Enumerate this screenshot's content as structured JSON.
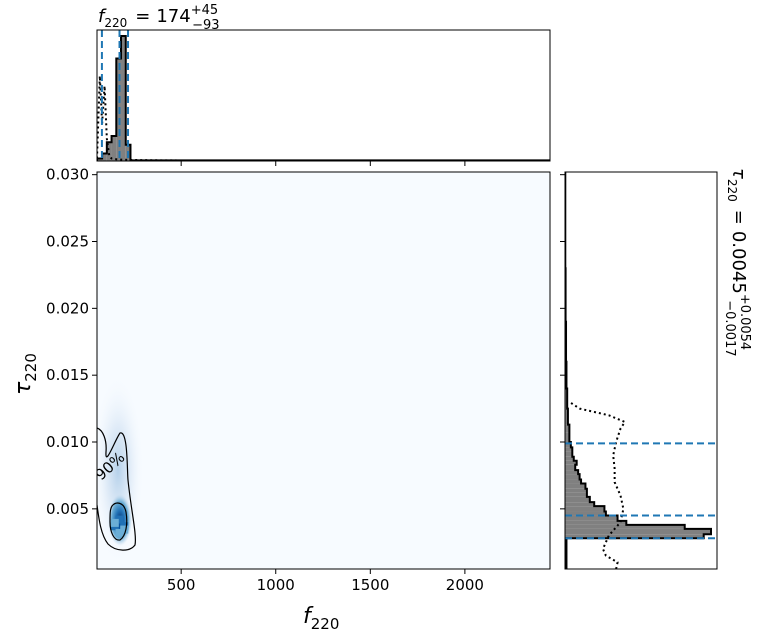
{
  "chart_data": {
    "type": "heatmap",
    "description_kind": "corner plot: 2D posterior density with marginal histograms",
    "top_title": {
      "symbol": "f",
      "subscript": "220",
      "equals": "=",
      "value": "174",
      "plus": "+45",
      "minus": "−93"
    },
    "right_title": {
      "symbol": "τ",
      "subscript": "220",
      "equals": "=",
      "value": "0.0045",
      "plus": "+0.0054",
      "minus": "−0.0017"
    },
    "xlabel": {
      "symbol": "f",
      "subscript": "220"
    },
    "ylabel": {
      "symbol": "τ",
      "subscript": "220"
    },
    "xlim": [
      55,
      2450
    ],
    "ylim": [
      0.0005,
      0.0302
    ],
    "xticks": [
      500,
      1000,
      1500,
      2000
    ],
    "xtick_labels": [
      "500",
      "1000",
      "1500",
      "2000"
    ],
    "yticks": [
      0.005,
      0.01,
      0.015,
      0.02,
      0.025,
      0.03
    ],
    "ytick_labels": [
      "0.005",
      "0.010",
      "0.015",
      "0.020",
      "0.025",
      "0.030"
    ],
    "contour_label": "90%",
    "colormap": "Blues",
    "heatmap_peak": {
      "f": 174,
      "tau": 0.0037
    },
    "f_marginal": {
      "median": 174,
      "quantiles": [
        81,
        219
      ],
      "bin_edges": [
        55,
        82,
        107,
        132,
        157,
        182,
        207,
        232,
        2450
      ],
      "counts": [
        2,
        6,
        15,
        20,
        82,
        100,
        13,
        0.5
      ],
      "dotted_prior_x": [
        55,
        70,
        82,
        95,
        107,
        120,
        132,
        150,
        170,
        200,
        250,
        400,
        700,
        1200,
        2450
      ],
      "dotted_prior_y": [
        2,
        68,
        30,
        60,
        18,
        4,
        2,
        1.5,
        1.2,
        1.0,
        0.8,
        0.5,
        0.3,
        0.15,
        0.05
      ]
    },
    "tau_marginal": {
      "median": 0.0045,
      "quantiles": [
        0.0028,
        0.0099
      ],
      "bin_edges": [
        0.0005,
        0.0028,
        0.0031,
        0.0035,
        0.0038,
        0.0041,
        0.0045,
        0.0048,
        0.0052,
        0.0055,
        0.0059,
        0.0062,
        0.0065,
        0.0069,
        0.0072,
        0.0076,
        0.0079,
        0.0083,
        0.0086,
        0.0089,
        0.0093,
        0.0096,
        0.01,
        0.0103,
        0.0107,
        0.0113,
        0.0125,
        0.014,
        0.016,
        0.019,
        0.023,
        0.0302
      ],
      "counts": [
        1,
        95,
        100,
        82,
        42,
        36,
        28,
        27,
        20,
        17,
        15,
        15,
        14,
        11,
        10,
        9,
        7,
        8,
        6,
        5,
        5,
        4,
        3,
        3,
        3,
        2,
        1.5,
        1,
        0.7,
        0.4,
        0.2
      ],
      "dotted_prior_tau": [
        0.0005,
        0.001,
        0.0015,
        0.002,
        0.003,
        0.004,
        0.005,
        0.006,
        0.007,
        0.008,
        0.009,
        0.01,
        0.011,
        0.0115,
        0.012,
        0.0125,
        0.013
      ],
      "dotted_prior_h": [
        35,
        36,
        28,
        26,
        30,
        38,
        40,
        38,
        34,
        34,
        33,
        35,
        38,
        41,
        30,
        10,
        3
      ]
    },
    "colors": {
      "hist_fill": "#808080",
      "hist_edge": "#000000",
      "quantile_line": "#1f77b4",
      "contour": "#000000",
      "heat_low": "#f7fbff",
      "heat_high": "#08306b"
    }
  }
}
